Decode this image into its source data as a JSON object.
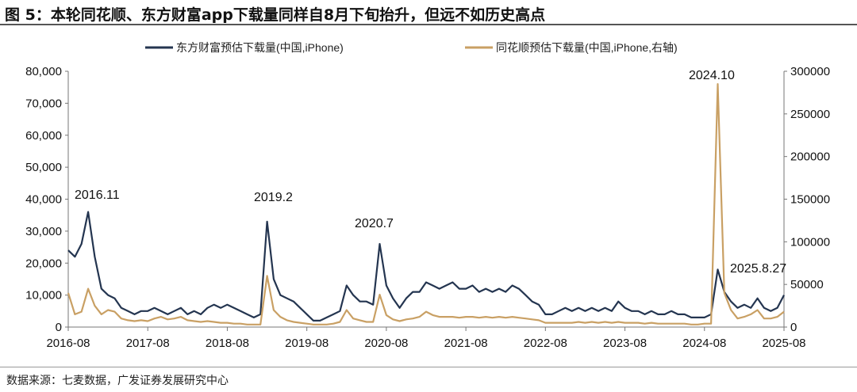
{
  "title": "图 5：本轮同花顺、东方财富app下载量同样自8月下旬抬升，但远不如历史高点",
  "source": "数据来源：七麦数据，广发证券发展研究中心",
  "chart_data": {
    "type": "line",
    "x_start": "2016-08",
    "x_frequency": "monthly",
    "xticks": [
      "2016-08",
      "2017-08",
      "2018-08",
      "2019-08",
      "2020-08",
      "2021-08",
      "2022-08",
      "2023-08",
      "2024-08",
      "2025-08"
    ],
    "left_axis": {
      "ylim": [
        0,
        80000
      ],
      "ticks": [
        "0",
        "10,000",
        "20,000",
        "30,000",
        "40,000",
        "50,000",
        "60,000",
        "70,000",
        "80,000"
      ]
    },
    "right_axis": {
      "ylim": [
        0,
        300000
      ],
      "ticks": [
        "0",
        "50000",
        "100000",
        "150000",
        "200000",
        "250000",
        "300000"
      ]
    },
    "legend_position": "top",
    "series": [
      {
        "name": "东方财富预估下载量(中国,iPhone)",
        "axis": "left",
        "color": "#243550",
        "values": [
          24000,
          22000,
          26000,
          36000,
          22000,
          12000,
          10000,
          9000,
          6000,
          5000,
          4000,
          5000,
          5000,
          6000,
          5000,
          4000,
          5000,
          6000,
          4000,
          5000,
          4000,
          6000,
          7000,
          6000,
          7000,
          6000,
          5000,
          4000,
          3000,
          4000,
          33000,
          15000,
          10000,
          9000,
          8000,
          6000,
          4000,
          2000,
          2000,
          3000,
          4000,
          5000,
          13000,
          10000,
          8000,
          8000,
          7000,
          26000,
          13000,
          9000,
          6000,
          9000,
          11000,
          11000,
          14000,
          13000,
          12000,
          13000,
          14000,
          12000,
          12000,
          13000,
          11000,
          12000,
          11000,
          12000,
          11000,
          13000,
          12000,
          10000,
          8000,
          7000,
          4000,
          4000,
          5000,
          6000,
          5000,
          6000,
          5000,
          6000,
          5000,
          6000,
          5000,
          8000,
          6000,
          5000,
          5000,
          4000,
          5000,
          4000,
          4000,
          5000,
          4000,
          4000,
          3000,
          3000,
          3000,
          4000,
          18000,
          11000,
          8000,
          6000,
          7000,
          6000,
          9000,
          6000,
          5000,
          6000,
          10000
        ]
      },
      {
        "name": "同花顺预估下载量(中国,iPhone,右轴)",
        "axis": "right",
        "color": "#c9a064",
        "values": [
          40000,
          15000,
          18000,
          45000,
          25000,
          15000,
          20000,
          18000,
          10000,
          8000,
          7000,
          8000,
          7000,
          10000,
          12000,
          9000,
          10000,
          12000,
          8000,
          7000,
          6000,
          7000,
          6000,
          5000,
          5000,
          4000,
          4000,
          3000,
          3000,
          3000,
          60000,
          20000,
          12000,
          8000,
          6000,
          5000,
          4000,
          3000,
          3000,
          3000,
          4000,
          6000,
          20000,
          10000,
          8000,
          6000,
          6000,
          38000,
          14000,
          9000,
          7000,
          9000,
          10000,
          12000,
          18000,
          14000,
          12000,
          12000,
          12000,
          11000,
          12000,
          12000,
          11000,
          12000,
          11000,
          12000,
          11000,
          12000,
          11000,
          10000,
          9000,
          8000,
          5000,
          5000,
          5000,
          5000,
          5000,
          6000,
          5000,
          6000,
          5000,
          6000,
          5000,
          6000,
          5000,
          5000,
          5000,
          4000,
          5000,
          4000,
          4000,
          4000,
          4000,
          4000,
          3000,
          3000,
          4000,
          4000,
          285000,
          40000,
          20000,
          10000,
          12000,
          15000,
          20000,
          10000,
          10000,
          12000,
          18000
        ]
      }
    ],
    "annotations": [
      "2016.11",
      "2019.2",
      "2020.7",
      "2024.10",
      "2025.8.27"
    ]
  }
}
